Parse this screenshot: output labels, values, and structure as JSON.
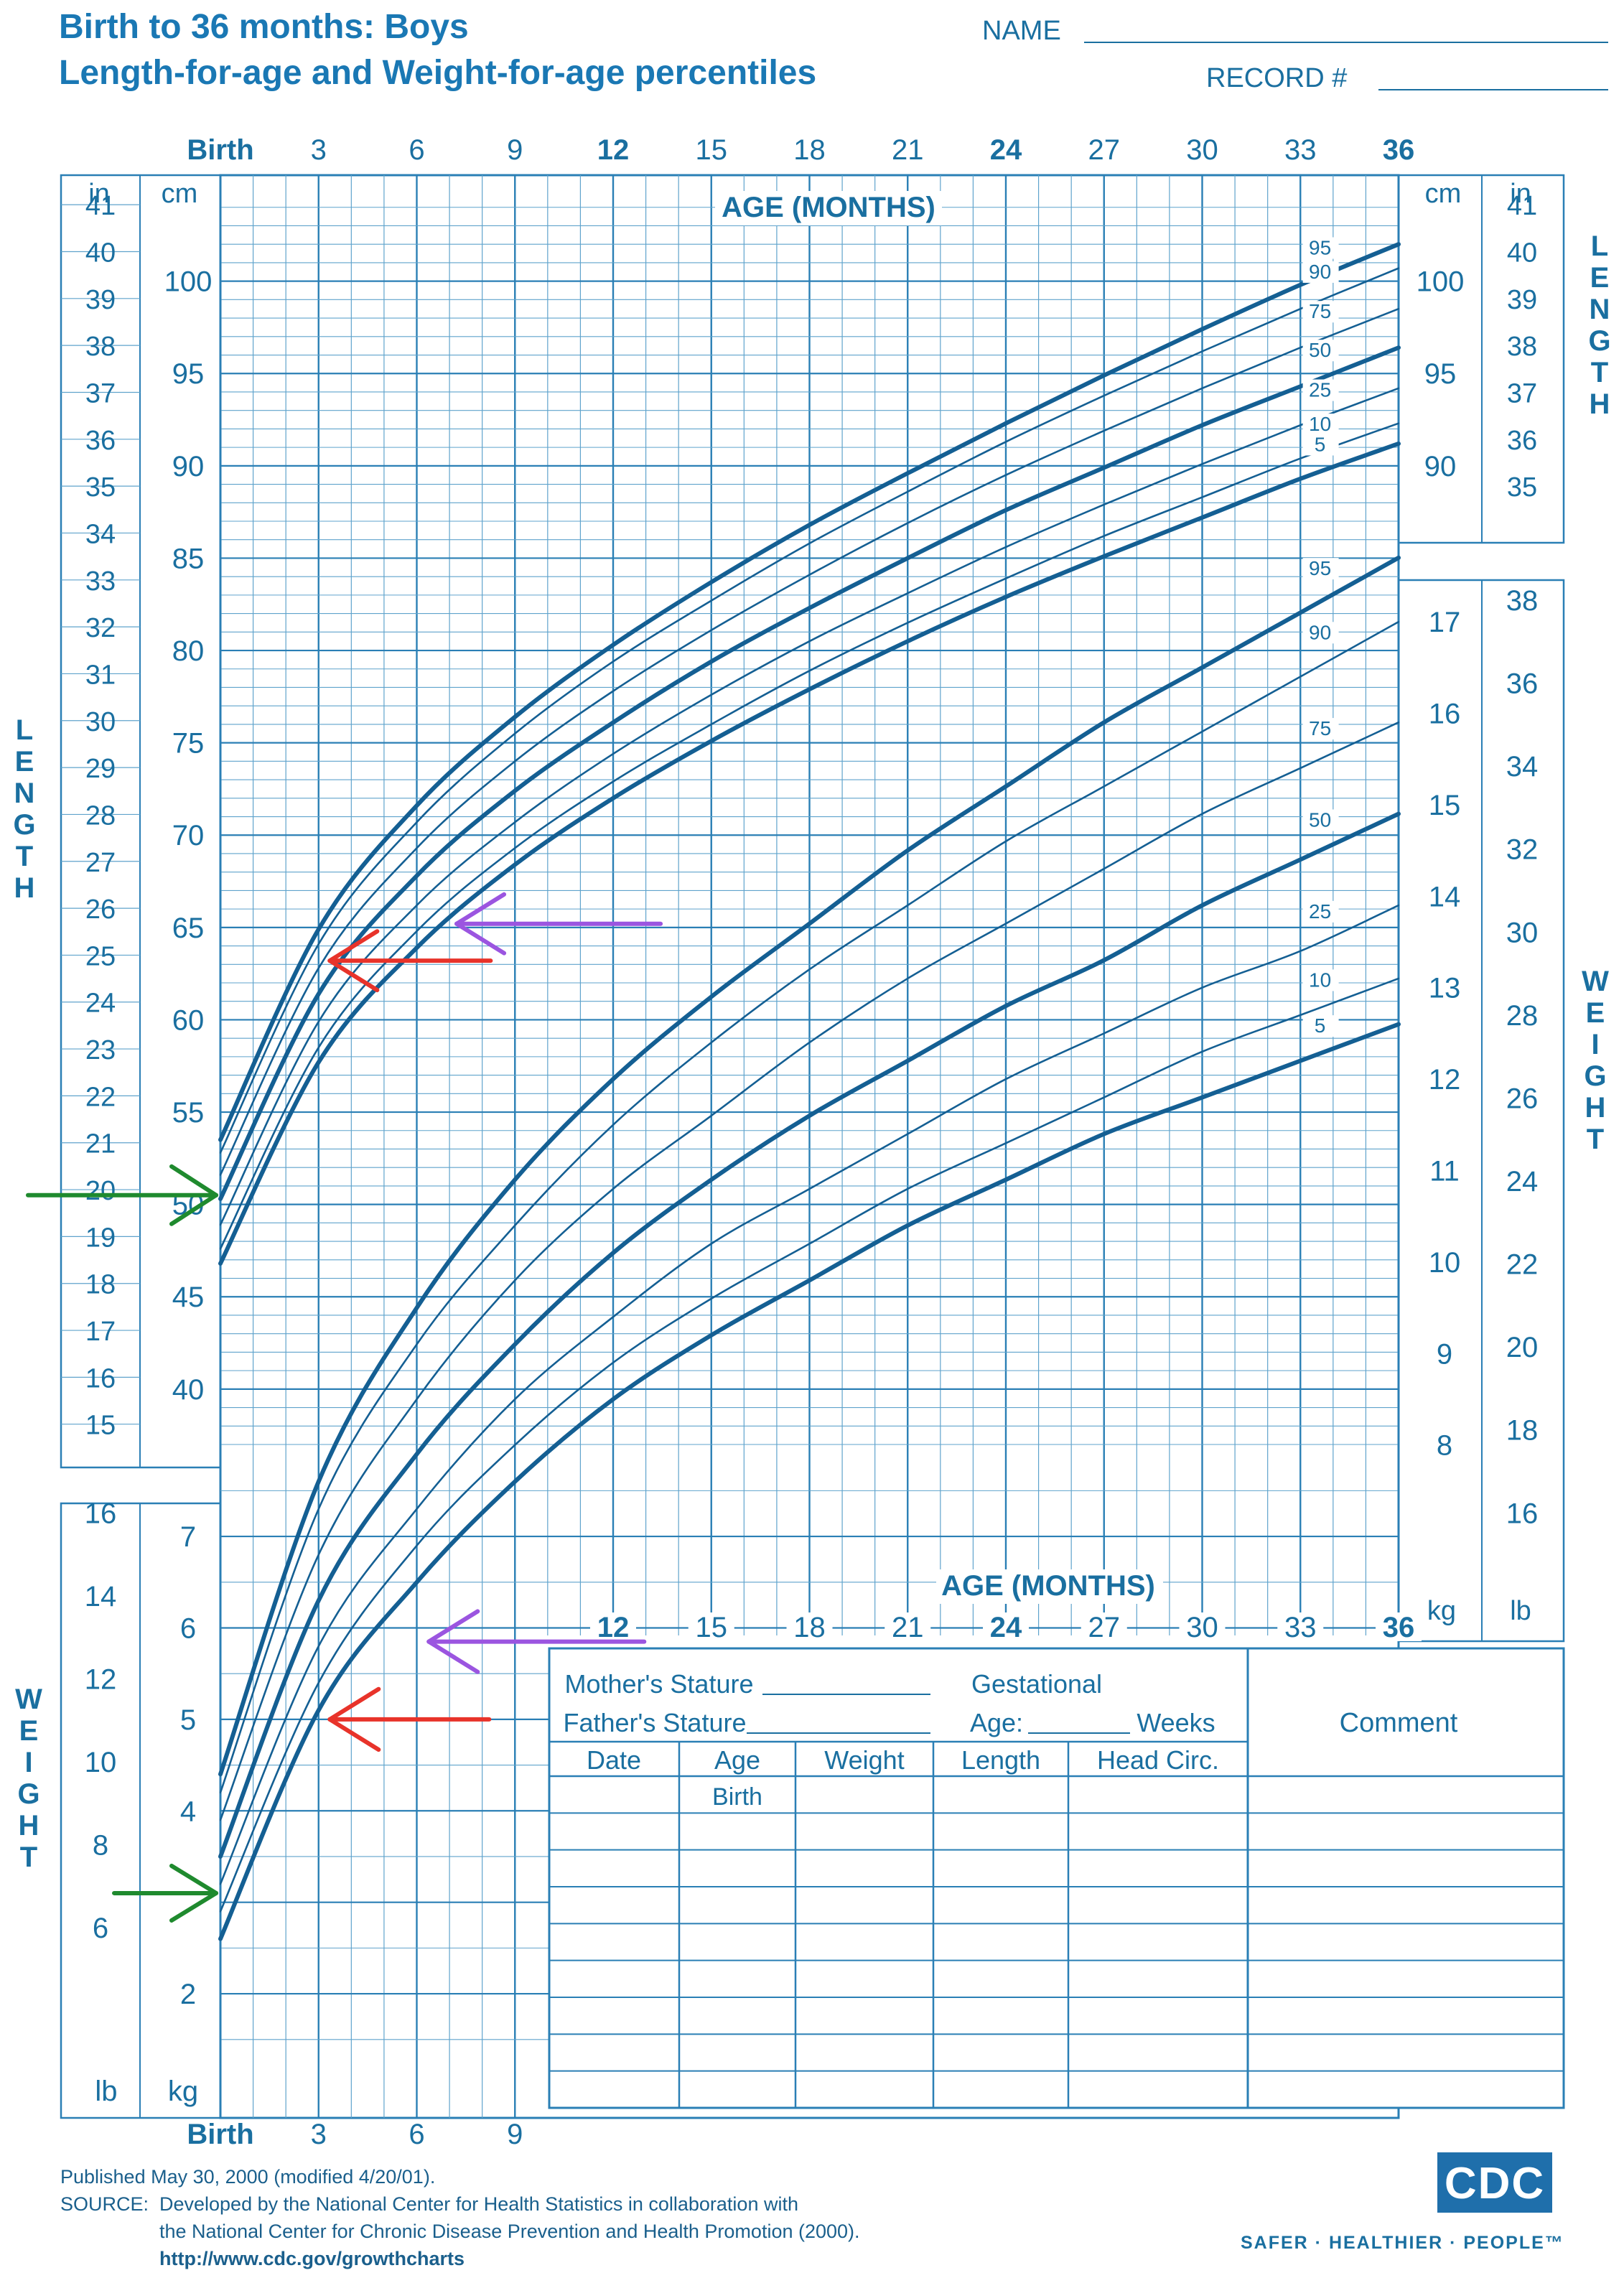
{
  "header": {
    "title_line1": "Birth to 36 months: Boys",
    "title_line2": "Length-for-age and Weight-for-age percentiles",
    "name_label": "NAME",
    "record_label": "RECORD #"
  },
  "age_axis": {
    "label": "AGE (MONTHS)",
    "top_ticks": [
      "Birth",
      "3",
      "6",
      "9",
      "12",
      "15",
      "18",
      "21",
      "24",
      "27",
      "30",
      "33",
      "36"
    ],
    "bold_ticks": [
      "Birth",
      "12",
      "24",
      "36"
    ],
    "bottom_left_ticks": [
      "Birth",
      "3",
      "6",
      "9"
    ],
    "inner_ticks": [
      "12",
      "15",
      "18",
      "21",
      "24",
      "27",
      "30",
      "33",
      "36"
    ],
    "inner_label": "AGE (MONTHS)"
  },
  "units": {
    "in": "in",
    "cm": "cm",
    "lb": "lb",
    "kg": "kg"
  },
  "side_words": {
    "length": "LENGTH",
    "weight": "WEIGHT"
  },
  "length_cm_labels": [
    "100",
    "95",
    "90",
    "85",
    "80",
    "75",
    "70",
    "65",
    "60",
    "55",
    "50",
    "45",
    "40"
  ],
  "length_in_labels_left": [
    "41",
    "40",
    "39",
    "38",
    "37",
    "36",
    "35",
    "34",
    "33",
    "32",
    "31",
    "30",
    "29",
    "28",
    "27",
    "26",
    "25",
    "24",
    "23",
    "22",
    "21",
    "20",
    "19",
    "18",
    "17",
    "16",
    "15"
  ],
  "length_in_labels_right": [
    "41",
    "40",
    "39",
    "38",
    "37",
    "36",
    "35"
  ],
  "weight_kg_right": [
    "17",
    "16",
    "15",
    "14",
    "13",
    "12",
    "11",
    "10",
    "9",
    "8"
  ],
  "weight_lb_right": [
    "38",
    "36",
    "34",
    "32",
    "30",
    "28",
    "26",
    "24",
    "22",
    "20",
    "18",
    "16"
  ],
  "weight_kg_left": [
    "7",
    "6",
    "5",
    "4"
  ],
  "weight_lb_left": [
    "16",
    "14",
    "12",
    "10",
    "8",
    "6"
  ],
  "weight_kg_bottom_labels": [
    "2"
  ],
  "percentile_labels": [
    "95",
    "90",
    "75",
    "50",
    "25",
    "10",
    "5"
  ],
  "colors": {
    "ink": "#1a6fa0",
    "grid_minor": "#5fa3cc",
    "grid_major": "#2a7fb5",
    "arrow_red": "#e8332a",
    "arrow_purple": "#9b55e0",
    "arrow_green": "#1f8a2e"
  },
  "chart_data": [
    {
      "type": "line",
      "title": "Length-for-age percentiles",
      "xlabel": "AGE (MONTHS)",
      "ylabel": "LENGTH",
      "x": [
        0,
        3,
        6,
        9,
        12,
        15,
        18,
        21,
        24,
        27,
        30,
        33,
        36
      ],
      "xlim": [
        0,
        36
      ],
      "ylim": [
        37,
        104
      ],
      "y_unit": "cm",
      "series": [
        {
          "name": "95",
          "values": [
            53.5,
            64.9,
            71.6,
            76.4,
            80.3,
            83.7,
            86.8,
            89.6,
            92.3,
            94.9,
            97.4,
            99.8,
            102.0
          ]
        },
        {
          "name": "90",
          "values": [
            52.8,
            64.1,
            70.7,
            75.5,
            79.4,
            82.7,
            85.8,
            88.6,
            91.3,
            93.8,
            96.2,
            98.5,
            100.7
          ]
        },
        {
          "name": "75",
          "values": [
            51.6,
            62.8,
            69.3,
            74.0,
            77.8,
            81.1,
            84.1,
            86.9,
            89.5,
            91.9,
            94.2,
            96.4,
            98.5
          ]
        },
        {
          "name": "50",
          "values": [
            50.3,
            61.4,
            67.8,
            72.4,
            76.1,
            79.4,
            82.3,
            85.0,
            87.6,
            89.9,
            92.2,
            94.3,
            96.4
          ]
        },
        {
          "name": "25",
          "values": [
            48.9,
            59.9,
            66.2,
            70.7,
            74.4,
            77.6,
            80.5,
            83.1,
            85.6,
            87.9,
            90.1,
            92.2,
            94.2
          ]
        },
        {
          "name": "10",
          "values": [
            47.6,
            58.5,
            64.8,
            69.3,
            72.9,
            76.0,
            78.9,
            81.5,
            83.9,
            86.2,
            88.3,
            90.4,
            92.3
          ]
        },
        {
          "name": "5",
          "values": [
            46.8,
            57.7,
            63.9,
            68.4,
            72.0,
            75.1,
            77.9,
            80.5,
            82.9,
            85.1,
            87.2,
            89.3,
            91.2
          ]
        }
      ]
    },
    {
      "type": "line",
      "title": "Weight-for-age percentiles",
      "xlabel": "AGE (MONTHS)",
      "ylabel": "WEIGHT",
      "x": [
        0,
        3,
        6,
        9,
        12,
        15,
        18,
        21,
        24,
        27,
        30,
        33,
        36
      ],
      "xlim": [
        0,
        36
      ],
      "ylim": [
        1.2,
        17.8
      ],
      "y_unit": "kg",
      "series": [
        {
          "name": "95",
          "values": [
            4.4,
            7.6,
            9.5,
            10.9,
            12.0,
            12.9,
            13.7,
            14.5,
            15.2,
            15.9,
            16.5,
            17.1,
            17.7
          ]
        },
        {
          "name": "90",
          "values": [
            4.2,
            7.3,
            9.1,
            10.4,
            11.5,
            12.4,
            13.2,
            13.9,
            14.6,
            15.2,
            15.8,
            16.4,
            17.0
          ]
        },
        {
          "name": "75",
          "values": [
            3.9,
            6.8,
            8.5,
            9.8,
            10.8,
            11.6,
            12.4,
            13.1,
            13.7,
            14.3,
            14.9,
            15.4,
            15.9
          ]
        },
        {
          "name": "50",
          "values": [
            3.5,
            6.3,
            7.9,
            9.1,
            10.1,
            10.9,
            11.6,
            12.2,
            12.8,
            13.3,
            13.9,
            14.4,
            14.9
          ]
        },
        {
          "name": "25",
          "values": [
            3.2,
            5.8,
            7.3,
            8.5,
            9.4,
            10.2,
            10.8,
            11.4,
            12.0,
            12.5,
            13.0,
            13.4,
            13.9
          ]
        },
        {
          "name": "10",
          "values": [
            2.9,
            5.4,
            6.9,
            8.0,
            8.9,
            9.6,
            10.2,
            10.8,
            11.3,
            11.8,
            12.3,
            12.7,
            13.1
          ]
        },
        {
          "name": "5",
          "values": [
            2.6,
            5.1,
            6.5,
            7.6,
            8.5,
            9.2,
            9.8,
            10.4,
            10.9,
            11.4,
            11.8,
            12.2,
            12.6
          ]
        }
      ]
    }
  ],
  "record_table": {
    "mothers_stature": "Mother's Stature",
    "fathers_stature": "Father's Stature",
    "gestational": "Gestational",
    "age": "Age:",
    "weeks": "Weeks",
    "comment": "Comment",
    "columns": [
      "Date",
      "Age",
      "Weight",
      "Length",
      "Head  Circ."
    ],
    "first_row_age": "Birth",
    "row_count": 9
  },
  "annotations": [
    {
      "color": "arrow_red",
      "age_months": 4,
      "points_to": "length",
      "value_cm": 63.2
    },
    {
      "color": "arrow_purple",
      "age_months": 7,
      "points_to": "length",
      "value_cm": 65.2
    },
    {
      "color": "arrow_green",
      "age_months": 0,
      "points_to": "length",
      "value_cm": 50.5
    },
    {
      "color": "arrow_red",
      "age_months": 4,
      "points_to": "weight",
      "value_kg": 5.0
    },
    {
      "color": "arrow_purple",
      "age_months": 6.5,
      "points_to": "weight",
      "value_kg": 5.85
    },
    {
      "color": "arrow_green",
      "age_months": 0,
      "points_to": "weight",
      "value_kg": 3.1
    }
  ],
  "footer": {
    "published": "Published May 30, 2000 (modified 4/20/01).",
    "source_label": "SOURCE:",
    "source_text1": "Developed by the National Center for Health Statistics in collaboration with",
    "source_text2": "the National Center for Chronic Disease Prevention and Health Promotion (2000).",
    "url": "http://www.cdc.gov/growthcharts",
    "logo": "CDC",
    "tagline": "SAFER · HEALTHIER · PEOPLE™"
  }
}
